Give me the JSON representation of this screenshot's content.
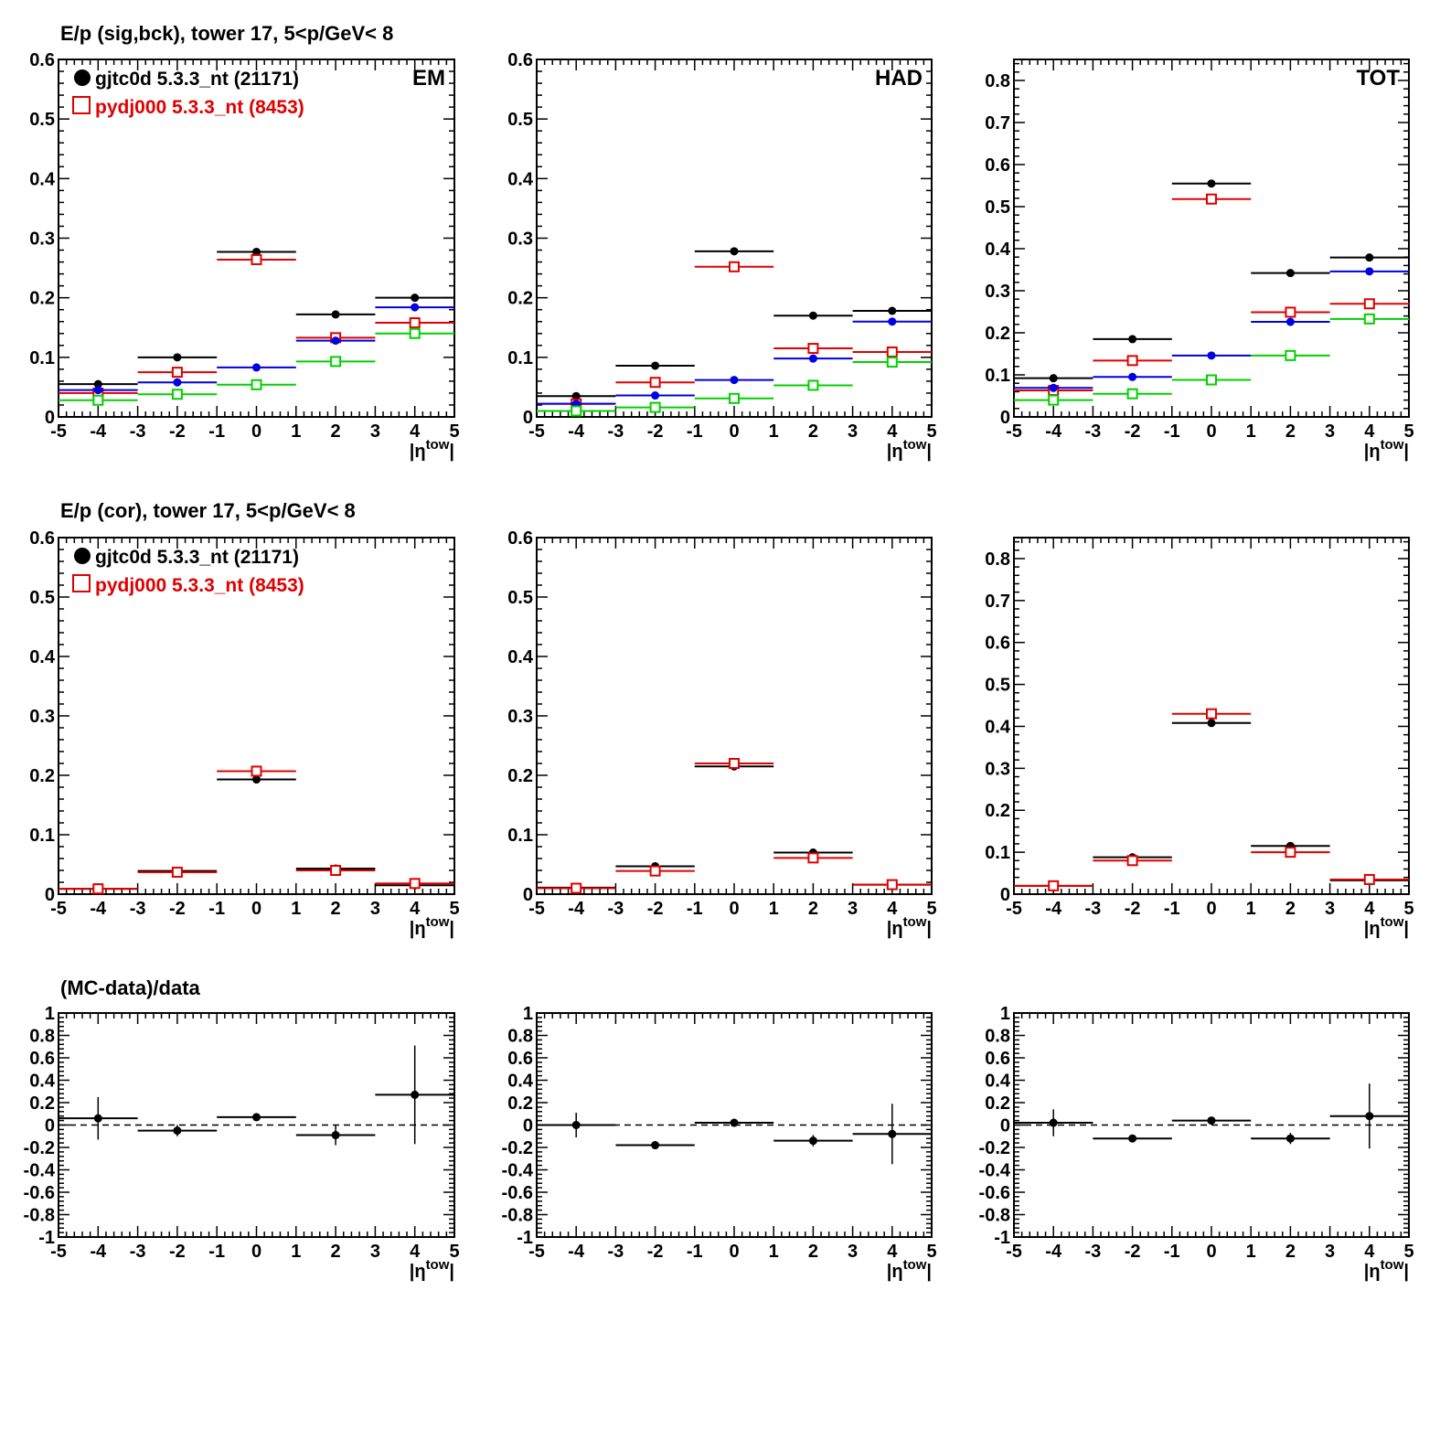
{
  "rows": [
    {
      "title": "E/p (sig,bck), tower 17,  5<p/GeV< 8",
      "legend": [
        {
          "label": "gjtc0d 5.3.3_nt (21171)",
          "color": "#000000",
          "marker": "filled-circle"
        },
        {
          "label": "pydj000 5.3.3_nt (8453)",
          "color": "#e00000",
          "marker": "open-square"
        }
      ]
    },
    {
      "title": "E/p (cor), tower 17,  5<p/GeV< 8",
      "legend": [
        {
          "label": "gjtc0d 5.3.3_nt (21171)",
          "color": "#000000",
          "marker": "filled-circle"
        },
        {
          "label": "pydj000 5.3.3_nt (8453)",
          "color": "#e00000",
          "marker": "open-square"
        }
      ]
    },
    {
      "title": "(MC-data)/data",
      "legend": []
    }
  ],
  "xlabel": {
    "main": "|η",
    "sup": "tow",
    "end": "|"
  },
  "chart_data": [
    {
      "type": "scatter",
      "panel_label": "EM",
      "ylim": [
        0,
        0.6
      ],
      "yticks": [
        "0",
        "0.1",
        "0.2",
        "0.3",
        "0.4",
        "0.5",
        "0.6"
      ],
      "xlim": [
        -5,
        5
      ],
      "xticks": [
        "-5",
        "-4",
        "-3",
        "-2",
        "-1",
        "0",
        "1",
        "2",
        "3",
        "4",
        "5"
      ],
      "series": [
        {
          "color": "#000000",
          "marker": "filled-circle",
          "x": [
            -4,
            -2,
            0,
            2,
            4
          ],
          "y": [
            0.055,
            0.1,
            0.277,
            0.172,
            0.2
          ]
        },
        {
          "color": "#e00000",
          "marker": "open-square",
          "x": [
            -4,
            -2,
            0,
            2,
            4
          ],
          "y": [
            0.04,
            0.075,
            0.264,
            0.133,
            0.158
          ]
        },
        {
          "color": "#0000e0",
          "marker": "filled-circle",
          "x": [
            -4,
            -2,
            0,
            2,
            4
          ],
          "y": [
            0.045,
            0.058,
            0.083,
            0.128,
            0.184
          ]
        },
        {
          "color": "#00d000",
          "marker": "open-square",
          "x": [
            -4,
            -2,
            0,
            2,
            4
          ],
          "y": [
            0.028,
            0.038,
            0.054,
            0.093,
            0.14
          ]
        }
      ]
    },
    {
      "type": "scatter",
      "panel_label": "HAD",
      "ylim": [
        0,
        0.6
      ],
      "yticks": [
        "0",
        "0.1",
        "0.2",
        "0.3",
        "0.4",
        "0.5",
        "0.6"
      ],
      "xlim": [
        -5,
        5
      ],
      "xticks": [
        "-5",
        "-4",
        "-3",
        "-2",
        "-1",
        "0",
        "1",
        "2",
        "3",
        "4",
        "5"
      ],
      "series": [
        {
          "color": "#000000",
          "marker": "filled-circle",
          "x": [
            -4,
            -2,
            0,
            2,
            4
          ],
          "y": [
            0.035,
            0.086,
            0.278,
            0.17,
            0.178
          ]
        },
        {
          "color": "#e00000",
          "marker": "open-square",
          "x": [
            -4,
            -2,
            0,
            2,
            4
          ],
          "y": [
            0.022,
            0.058,
            0.252,
            0.115,
            0.109
          ]
        },
        {
          "color": "#0000e0",
          "marker": "filled-circle",
          "x": [
            -4,
            -2,
            0,
            2,
            4
          ],
          "y": [
            0.022,
            0.036,
            0.062,
            0.098,
            0.16
          ]
        },
        {
          "color": "#00d000",
          "marker": "open-square",
          "x": [
            -4,
            -2,
            0,
            2,
            4
          ],
          "y": [
            0.01,
            0.016,
            0.031,
            0.053,
            0.092
          ]
        }
      ]
    },
    {
      "type": "scatter",
      "panel_label": "TOT",
      "ylim": [
        0,
        0.85
      ],
      "yticks": [
        "0",
        "0.1",
        "0.2",
        "0.3",
        "0.4",
        "0.5",
        "0.6",
        "0.7",
        "0.8"
      ],
      "xlim": [
        -5,
        5
      ],
      "xticks": [
        "-5",
        "-4",
        "-3",
        "-2",
        "-1",
        "0",
        "1",
        "2",
        "3",
        "4",
        "5"
      ],
      "series": [
        {
          "color": "#000000",
          "marker": "filled-circle",
          "x": [
            -4,
            -2,
            0,
            2,
            4
          ],
          "y": [
            0.092,
            0.185,
            0.555,
            0.342,
            0.379
          ]
        },
        {
          "color": "#e00000",
          "marker": "open-square",
          "x": [
            -4,
            -2,
            0,
            2,
            4
          ],
          "y": [
            0.063,
            0.134,
            0.518,
            0.249,
            0.269
          ]
        },
        {
          "color": "#0000e0",
          "marker": "filled-circle",
          "x": [
            -4,
            -2,
            0,
            2,
            4
          ],
          "y": [
            0.069,
            0.095,
            0.146,
            0.226,
            0.346
          ]
        },
        {
          "color": "#00d000",
          "marker": "open-square",
          "x": [
            -4,
            -2,
            0,
            2,
            4
          ],
          "y": [
            0.04,
            0.055,
            0.088,
            0.146,
            0.233
          ]
        }
      ]
    },
    {
      "type": "scatter",
      "panel_label": "",
      "ylim": [
        0,
        0.6
      ],
      "yticks": [
        "0",
        "0.1",
        "0.2",
        "0.3",
        "0.4",
        "0.5",
        "0.6"
      ],
      "xlim": [
        -5,
        5
      ],
      "xticks": [
        "-5",
        "-4",
        "-3",
        "-2",
        "-1",
        "0",
        "1",
        "2",
        "3",
        "4",
        "5"
      ],
      "series": [
        {
          "color": "#000000",
          "marker": "filled-circle",
          "x": [
            -4,
            -2,
            0,
            2,
            4
          ],
          "y": [
            0.009,
            0.039,
            0.193,
            0.043,
            0.015
          ]
        },
        {
          "color": "#e00000",
          "marker": "open-square",
          "x": [
            -4,
            -2,
            0,
            2,
            4
          ],
          "y": [
            0.009,
            0.037,
            0.207,
            0.04,
            0.018
          ]
        }
      ]
    },
    {
      "type": "scatter",
      "panel_label": "",
      "ylim": [
        0,
        0.6
      ],
      "yticks": [
        "0",
        "0.1",
        "0.2",
        "0.3",
        "0.4",
        "0.5",
        "0.6"
      ],
      "xlim": [
        -5,
        5
      ],
      "xticks": [
        "-5",
        "-4",
        "-3",
        "-2",
        "-1",
        "0",
        "1",
        "2",
        "3",
        "4",
        "5"
      ],
      "series": [
        {
          "color": "#000000",
          "marker": "filled-circle",
          "x": [
            -4,
            -2,
            0,
            2,
            4
          ],
          "y": [
            0.011,
            0.047,
            0.215,
            0.07,
            0.016
          ]
        },
        {
          "color": "#e00000",
          "marker": "open-square",
          "x": [
            -4,
            -2,
            0,
            2,
            4
          ],
          "y": [
            0.01,
            0.039,
            0.22,
            0.061,
            0.016
          ]
        }
      ]
    },
    {
      "type": "scatter",
      "panel_label": "",
      "ylim": [
        0,
        0.85
      ],
      "yticks": [
        "0",
        "0.1",
        "0.2",
        "0.3",
        "0.4",
        "0.5",
        "0.6",
        "0.7",
        "0.8"
      ],
      "xlim": [
        -5,
        5
      ],
      "xticks": [
        "-5",
        "-4",
        "-3",
        "-2",
        "-1",
        "0",
        "1",
        "2",
        "3",
        "4",
        "5"
      ],
      "series": [
        {
          "color": "#000000",
          "marker": "filled-circle",
          "x": [
            -4,
            -2,
            0,
            2,
            4
          ],
          "y": [
            0.02,
            0.088,
            0.408,
            0.115,
            0.033
          ]
        },
        {
          "color": "#e00000",
          "marker": "open-square",
          "x": [
            -4,
            -2,
            0,
            2,
            4
          ],
          "y": [
            0.02,
            0.08,
            0.43,
            0.1,
            0.035
          ]
        }
      ]
    },
    {
      "type": "scatter",
      "panel_label": "",
      "ylim": [
        -1,
        1
      ],
      "yticks": [
        "-1",
        "-0.8",
        "-0.6",
        "-0.4",
        "-0.2",
        "0",
        "0.2",
        "0.4",
        "0.6",
        "0.8",
        "1"
      ],
      "xlim": [
        -5,
        5
      ],
      "xticks": [
        "-5",
        "-4",
        "-3",
        "-2",
        "-1",
        "0",
        "1",
        "2",
        "3",
        "4",
        "5"
      ],
      "reference_line": 0,
      "series": [
        {
          "color": "#000000",
          "marker": "filled-circle",
          "x": [
            -4,
            -2,
            0,
            2,
            4
          ],
          "y": [
            0.06,
            -0.05,
            0.07,
            -0.09,
            0.27
          ],
          "yerr": [
            0.19,
            0.05,
            0.02,
            0.09,
            0.44
          ]
        }
      ]
    },
    {
      "type": "scatter",
      "panel_label": "",
      "ylim": [
        -1,
        1
      ],
      "yticks": [
        "-1",
        "-0.8",
        "-0.6",
        "-0.4",
        "-0.2",
        "0",
        "0.2",
        "0.4",
        "0.6",
        "0.8",
        "1"
      ],
      "xlim": [
        -5,
        5
      ],
      "xticks": [
        "-5",
        "-4",
        "-3",
        "-2",
        "-1",
        "0",
        "1",
        "2",
        "3",
        "4",
        "5"
      ],
      "reference_line": 0,
      "series": [
        {
          "color": "#000000",
          "marker": "filled-circle",
          "x": [
            -4,
            -2,
            0,
            2,
            4
          ],
          "y": [
            0.0,
            -0.18,
            0.02,
            -0.14,
            -0.08
          ],
          "yerr": [
            0.11,
            0.02,
            0.02,
            0.05,
            0.27
          ]
        }
      ]
    },
    {
      "type": "scatter",
      "panel_label": "",
      "ylim": [
        -1,
        1
      ],
      "yticks": [
        "-1",
        "-0.8",
        "-0.6",
        "-0.4",
        "-0.2",
        "0",
        "0.2",
        "0.4",
        "0.6",
        "0.8",
        "1"
      ],
      "xlim": [
        -5,
        5
      ],
      "xticks": [
        "-5",
        "-4",
        "-3",
        "-2",
        "-1",
        "0",
        "1",
        "2",
        "3",
        "4",
        "5"
      ],
      "reference_line": 0,
      "series": [
        {
          "color": "#000000",
          "marker": "filled-circle",
          "x": [
            -4,
            -2,
            0,
            2,
            4
          ],
          "y": [
            0.02,
            -0.12,
            0.04,
            -0.12,
            0.08
          ],
          "yerr": [
            0.12,
            0.02,
            0.02,
            0.05,
            0.29
          ]
        }
      ]
    }
  ]
}
